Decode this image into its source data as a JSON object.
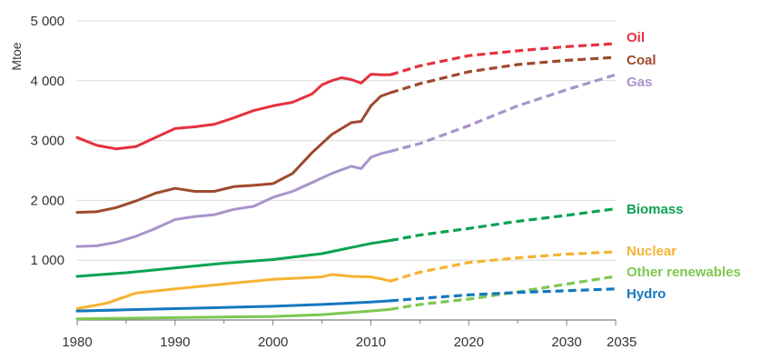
{
  "chart_data": {
    "type": "line",
    "title": "",
    "xlabel": "",
    "ylabel": "Mtoe",
    "xlim": [
      1980,
      2035
    ],
    "ylim": [
      0,
      5000
    ],
    "x_ticks": [
      1980,
      1990,
      2000,
      2010,
      2020,
      2030,
      2035
    ],
    "y_ticks": [
      {
        "value": 1000,
        "label": "1 000"
      },
      {
        "value": 2000,
        "label": "2 000"
      },
      {
        "value": 3000,
        "label": "3 000"
      },
      {
        "value": 4000,
        "label": "4 000"
      },
      {
        "value": 5000,
        "label": "5 000"
      }
    ],
    "grid": true,
    "legend_placement": "right (labels at line ends)",
    "historical_end_year": 2012,
    "series": [
      {
        "name": "Oil",
        "color": "#e5323e",
        "historical": [
          [
            1980,
            3050
          ],
          [
            1982,
            2920
          ],
          [
            1984,
            2860
          ],
          [
            1986,
            2900
          ],
          [
            1988,
            3050
          ],
          [
            1990,
            3200
          ],
          [
            1992,
            3230
          ],
          [
            1994,
            3270
          ],
          [
            1996,
            3380
          ],
          [
            1998,
            3500
          ],
          [
            2000,
            3580
          ],
          [
            2002,
            3640
          ],
          [
            2004,
            3780
          ],
          [
            2005,
            3930
          ],
          [
            2006,
            4000
          ],
          [
            2007,
            4050
          ],
          [
            2008,
            4020
          ],
          [
            2009,
            3960
          ],
          [
            2010,
            4110
          ],
          [
            2011,
            4100
          ],
          [
            2012,
            4100
          ]
        ],
        "projected": [
          [
            2012,
            4100
          ],
          [
            2015,
            4250
          ],
          [
            2020,
            4420
          ],
          [
            2025,
            4500
          ],
          [
            2030,
            4570
          ],
          [
            2035,
            4620
          ]
        ]
      },
      {
        "name": "Coal",
        "color": "#9e4a2f",
        "historical": [
          [
            1980,
            1800
          ],
          [
            1982,
            1810
          ],
          [
            1984,
            1880
          ],
          [
            1986,
            1990
          ],
          [
            1988,
            2120
          ],
          [
            1990,
            2200
          ],
          [
            1992,
            2150
          ],
          [
            1994,
            2150
          ],
          [
            1996,
            2230
          ],
          [
            1998,
            2250
          ],
          [
            2000,
            2280
          ],
          [
            2002,
            2450
          ],
          [
            2004,
            2800
          ],
          [
            2006,
            3100
          ],
          [
            2008,
            3300
          ],
          [
            2009,
            3320
          ],
          [
            2010,
            3580
          ],
          [
            2011,
            3740
          ],
          [
            2012,
            3800
          ]
        ],
        "projected": [
          [
            2012,
            3800
          ],
          [
            2015,
            3950
          ],
          [
            2020,
            4150
          ],
          [
            2025,
            4270
          ],
          [
            2030,
            4340
          ],
          [
            2035,
            4390
          ]
        ]
      },
      {
        "name": "Gas",
        "color": "#a894cc",
        "historical": [
          [
            1980,
            1230
          ],
          [
            1982,
            1240
          ],
          [
            1984,
            1300
          ],
          [
            1986,
            1400
          ],
          [
            1988,
            1530
          ],
          [
            1990,
            1680
          ],
          [
            1992,
            1730
          ],
          [
            1994,
            1760
          ],
          [
            1996,
            1850
          ],
          [
            1998,
            1900
          ],
          [
            2000,
            2050
          ],
          [
            2002,
            2150
          ],
          [
            2004,
            2300
          ],
          [
            2006,
            2450
          ],
          [
            2008,
            2570
          ],
          [
            2009,
            2530
          ],
          [
            2010,
            2720
          ],
          [
            2011,
            2780
          ],
          [
            2012,
            2820
          ]
        ],
        "projected": [
          [
            2012,
            2820
          ],
          [
            2015,
            2950
          ],
          [
            2020,
            3250
          ],
          [
            2025,
            3580
          ],
          [
            2030,
            3850
          ],
          [
            2035,
            4100
          ]
        ]
      },
      {
        "name": "Biomass",
        "color": "#0aa352",
        "historical": [
          [
            1980,
            730
          ],
          [
            1985,
            790
          ],
          [
            1990,
            870
          ],
          [
            1995,
            950
          ],
          [
            2000,
            1010
          ],
          [
            2005,
            1110
          ],
          [
            2010,
            1280
          ],
          [
            2012,
            1330
          ]
        ],
        "projected": [
          [
            2012,
            1330
          ],
          [
            2015,
            1420
          ],
          [
            2020,
            1530
          ],
          [
            2025,
            1650
          ],
          [
            2030,
            1750
          ],
          [
            2035,
            1860
          ]
        ]
      },
      {
        "name": "Nuclear",
        "color": "#f5b332",
        "historical": [
          [
            1980,
            190
          ],
          [
            1983,
            280
          ],
          [
            1986,
            450
          ],
          [
            1990,
            520
          ],
          [
            1995,
            600
          ],
          [
            2000,
            680
          ],
          [
            2005,
            720
          ],
          [
            2006,
            760
          ],
          [
            2008,
            730
          ],
          [
            2010,
            720
          ],
          [
            2011,
            690
          ],
          [
            2012,
            650
          ]
        ],
        "projected": [
          [
            2012,
            650
          ],
          [
            2015,
            800
          ],
          [
            2020,
            960
          ],
          [
            2025,
            1040
          ],
          [
            2030,
            1100
          ],
          [
            2035,
            1140
          ]
        ]
      },
      {
        "name": "Other renewables",
        "color": "#7ec850",
        "historical": [
          [
            1980,
            20
          ],
          [
            1990,
            40
          ],
          [
            2000,
            60
          ],
          [
            2005,
            90
          ],
          [
            2010,
            150
          ],
          [
            2012,
            180
          ]
        ],
        "projected": [
          [
            2012,
            180
          ],
          [
            2015,
            260
          ],
          [
            2020,
            350
          ],
          [
            2025,
            470
          ],
          [
            2030,
            600
          ],
          [
            2035,
            730
          ]
        ]
      },
      {
        "name": "Hydro",
        "color": "#1478be",
        "historical": [
          [
            1980,
            150
          ],
          [
            1985,
            170
          ],
          [
            1990,
            190
          ],
          [
            1995,
            210
          ],
          [
            2000,
            230
          ],
          [
            2005,
            260
          ],
          [
            2010,
            300
          ],
          [
            2012,
            320
          ]
        ],
        "projected": [
          [
            2012,
            320
          ],
          [
            2015,
            360
          ],
          [
            2020,
            420
          ],
          [
            2025,
            460
          ],
          [
            2030,
            490
          ],
          [
            2035,
            520
          ]
        ]
      }
    ]
  }
}
